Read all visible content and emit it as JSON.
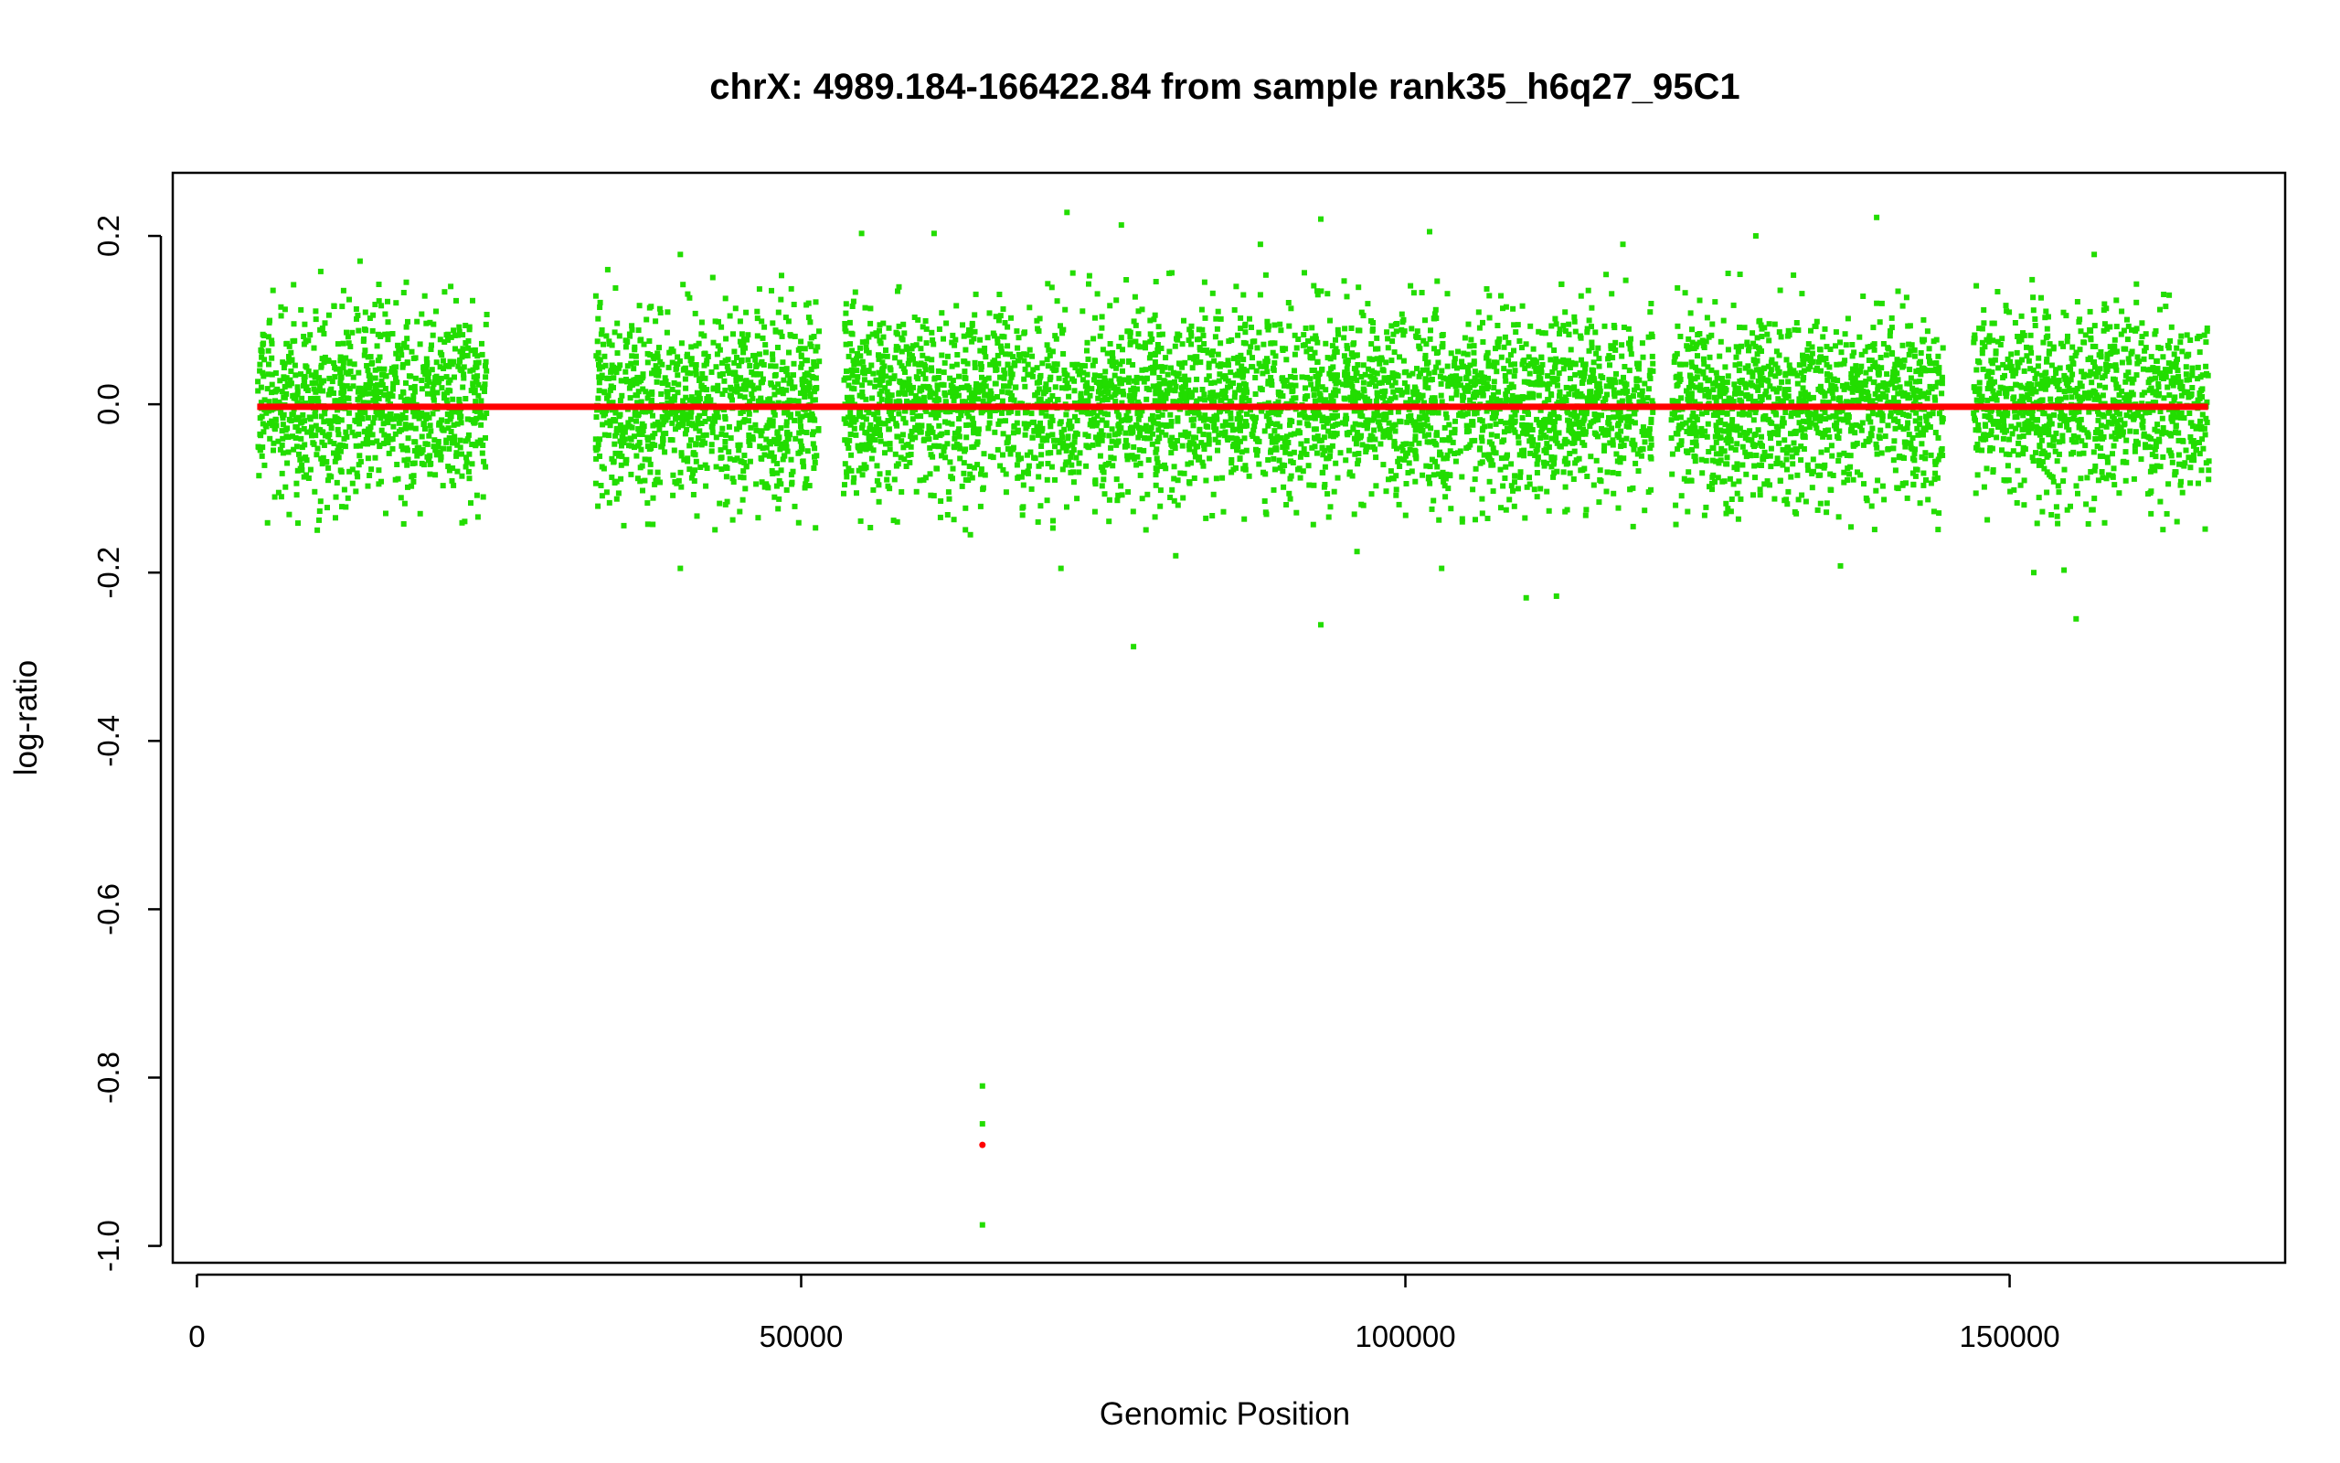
{
  "chart_data": {
    "type": "scatter",
    "title": "chrX: 4989.184-166422.84 from sample rank35_h6q27_95C1",
    "xlabel": "Genomic Position",
    "ylabel": "log-ratio",
    "xlim": [
      -2000,
      172800
    ],
    "ylim": [
      -1.02,
      0.275
    ],
    "x_ticks": [
      0,
      50000,
      100000,
      150000
    ],
    "x_tick_labels": [
      "0",
      "50000",
      "100000",
      "150000"
    ],
    "y_ticks": [
      -1.0,
      -0.8,
      -0.6,
      -0.4,
      -0.2,
      0.0,
      0.2
    ],
    "y_tick_labels": [
      "-1.0",
      "-0.8",
      "-0.6",
      "-0.4",
      "-0.2",
      "0.0",
      "0.2"
    ],
    "grid": false,
    "legend": "none",
    "colors": {
      "points": "#22dd00",
      "segment": "#ff0000",
      "segment_point": "#ff0000"
    },
    "probe_regions": [
      [
        5000,
        24000
      ],
      [
        33000,
        51500
      ],
      [
        53500,
        120500
      ],
      [
        122000,
        144500
      ],
      [
        147000,
        166500
      ]
    ],
    "probe_scatter": {
      "center": 0.0,
      "sd": 0.055,
      "count": 7500
    },
    "outliers": [
      {
        "x": 8000,
        "y": 0.142
      },
      {
        "x": 13500,
        "y": 0.17
      },
      {
        "x": 21000,
        "y": 0.14
      },
      {
        "x": 34000,
        "y": 0.16
      },
      {
        "x": 40000,
        "y": 0.178
      },
      {
        "x": 55000,
        "y": 0.203
      },
      {
        "x": 61000,
        "y": 0.203
      },
      {
        "x": 72000,
        "y": 0.228
      },
      {
        "x": 76500,
        "y": 0.213
      },
      {
        "x": 88000,
        "y": 0.19
      },
      {
        "x": 93000,
        "y": 0.22
      },
      {
        "x": 102000,
        "y": 0.205
      },
      {
        "x": 118000,
        "y": 0.19
      },
      {
        "x": 129000,
        "y": 0.2
      },
      {
        "x": 139000,
        "y": 0.222
      },
      {
        "x": 157000,
        "y": 0.178
      },
      {
        "x": 40000,
        "y": -0.195
      },
      {
        "x": 71500,
        "y": -0.195
      },
      {
        "x": 77500,
        "y": -0.288
      },
      {
        "x": 81000,
        "y": -0.18
      },
      {
        "x": 93000,
        "y": -0.262
      },
      {
        "x": 96000,
        "y": -0.175
      },
      {
        "x": 103000,
        "y": -0.195
      },
      {
        "x": 110000,
        "y": -0.23
      },
      {
        "x": 112500,
        "y": -0.228
      },
      {
        "x": 136000,
        "y": -0.192
      },
      {
        "x": 152000,
        "y": -0.2
      },
      {
        "x": 154500,
        "y": -0.197
      },
      {
        "x": 155500,
        "y": -0.255
      },
      {
        "x": 64000,
        "y": -0.155
      },
      {
        "x": 65000,
        "y": -0.81
      },
      {
        "x": 65000,
        "y": -0.855
      },
      {
        "x": 65000,
        "y": -0.975
      }
    ],
    "segments": [
      {
        "x0": 4989.184,
        "x1": 166422.84,
        "y": -0.003
      }
    ],
    "segment_points": [
      {
        "x": 65000,
        "y": -0.88
      }
    ]
  }
}
